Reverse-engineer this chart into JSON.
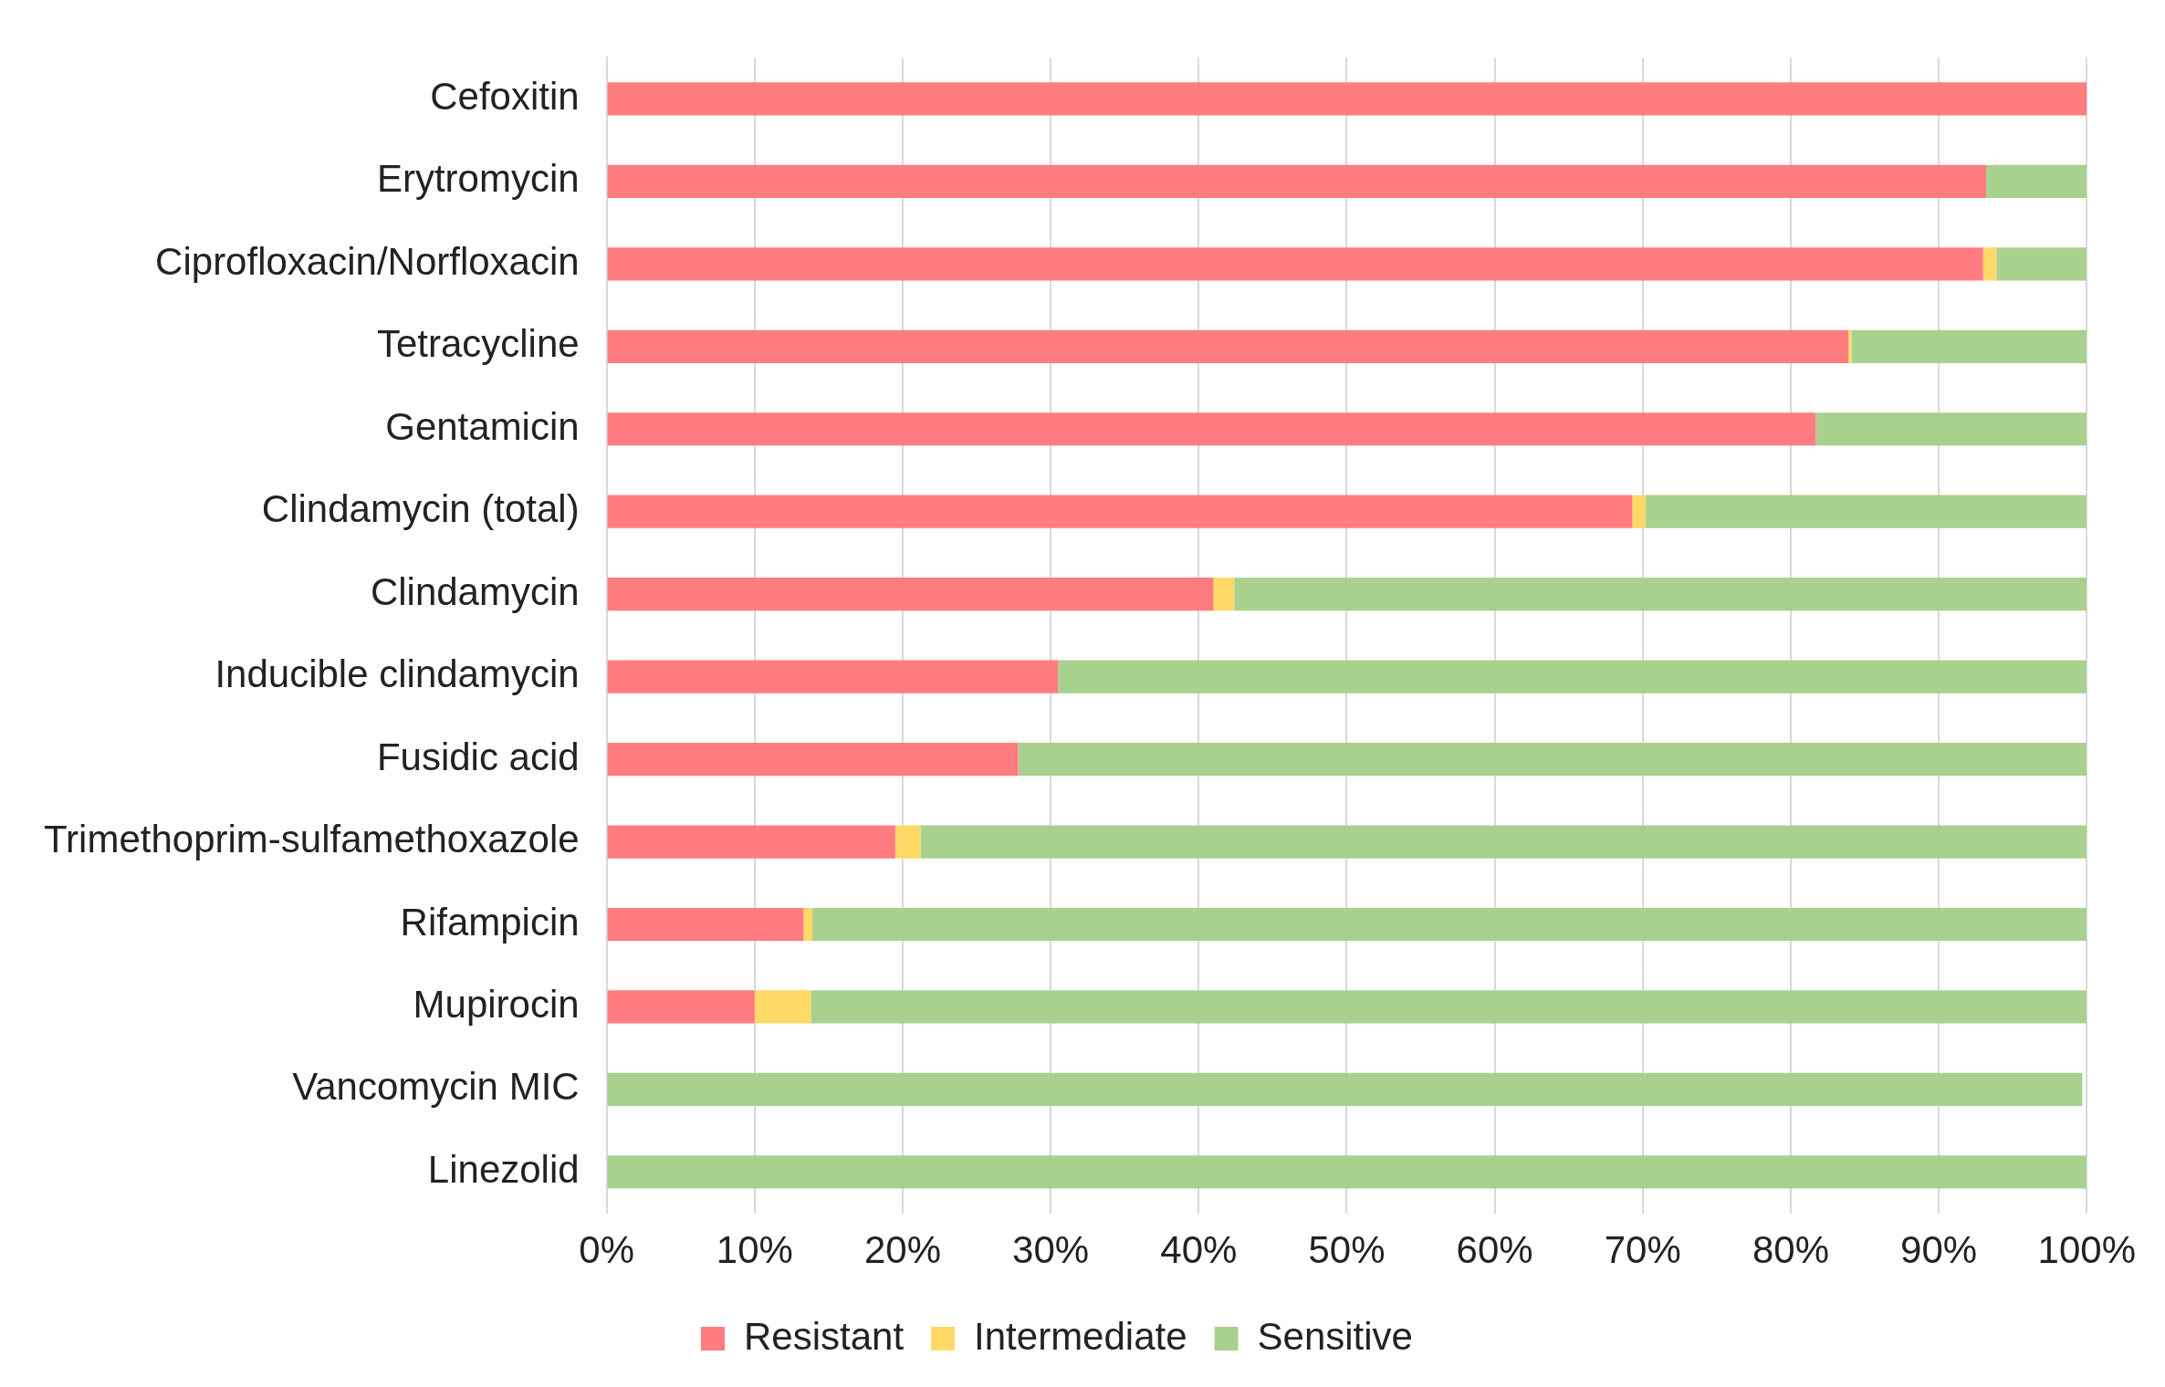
{
  "chart_data": {
    "type": "bar",
    "orientation": "horizontal",
    "stacked": true,
    "categories": [
      "Cefoxitin",
      "Erytromycin",
      "Ciprofloxacin/Norfloxacin",
      "Tetracycline",
      "Gentamicin",
      "Clindamycin (total)",
      "Clindamycin",
      "Inducible clindamycin",
      "Fusidic acid",
      "Trimethoprim-sulfamethoxazole",
      "Rifampicin",
      "Mupirocin",
      "Vancomycin MIC",
      "Linezolid"
    ],
    "series": [
      {
        "name": "Resistant",
        "color": "#ff7c80",
        "values": [
          100,
          93.2,
          93.0,
          83.9,
          81.7,
          69.3,
          41.0,
          30.5,
          27.8,
          19.5,
          13.3,
          10.0,
          0,
          0
        ]
      },
      {
        "name": "Intermediate",
        "color": "#ffd966",
        "values": [
          0,
          0,
          0.9,
          0.2,
          0,
          0.9,
          1.4,
          0,
          0,
          1.7,
          0.6,
          3.8,
          0,
          0
        ]
      },
      {
        "name": "Sensitive",
        "color": "#a9d18e",
        "values": [
          0,
          6.8,
          6.1,
          15.9,
          18.3,
          29.8,
          57.6,
          69.5,
          72.2,
          78.8,
          86.1,
          86.2,
          99.7,
          100
        ]
      }
    ],
    "xlim": [
      0,
      100
    ],
    "xticks": [
      {
        "value": 0,
        "label": "0%"
      },
      {
        "value": 10,
        "label": "10%"
      },
      {
        "value": 20,
        "label": "20%"
      },
      {
        "value": 30,
        "label": "30%"
      },
      {
        "value": 40,
        "label": "40%"
      },
      {
        "value": 50,
        "label": "50%"
      },
      {
        "value": 60,
        "label": "60%"
      },
      {
        "value": 70,
        "label": "70%"
      },
      {
        "value": 80,
        "label": "80%"
      },
      {
        "value": 90,
        "label": "90%"
      },
      {
        "value": 100,
        "label": "100%"
      }
    ],
    "grid": "x",
    "legend": "bottom"
  }
}
